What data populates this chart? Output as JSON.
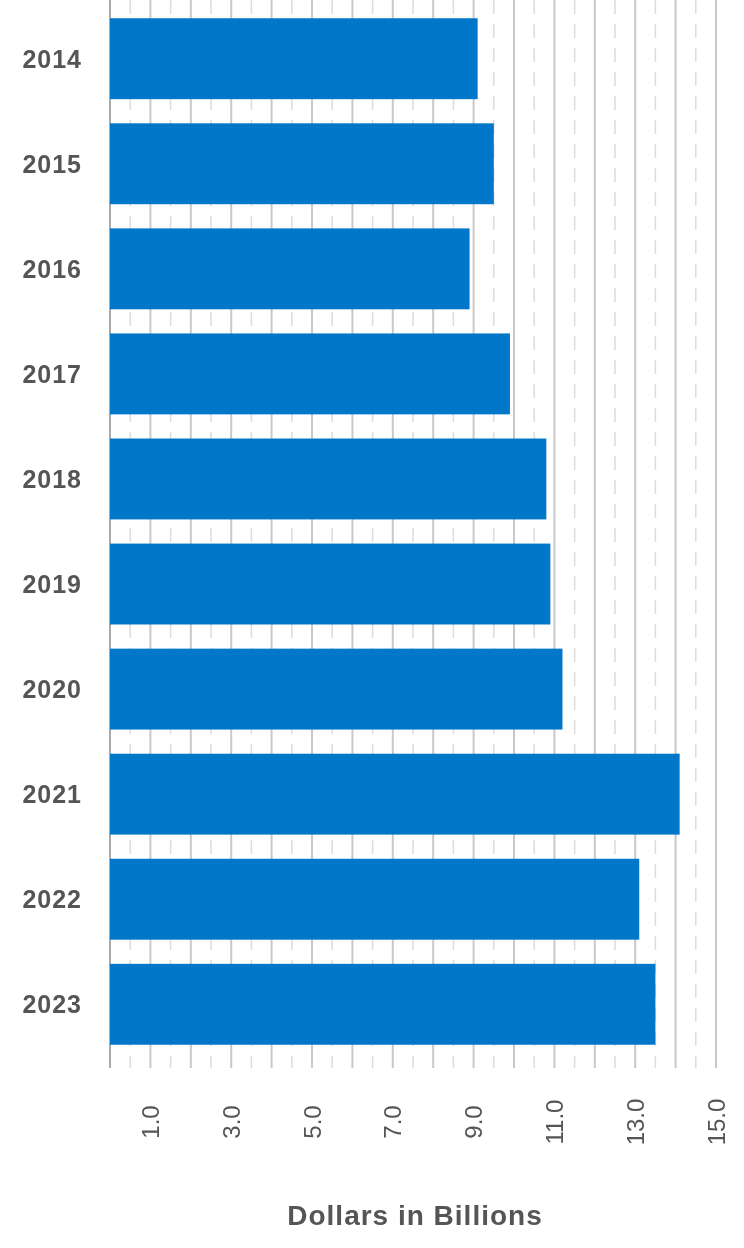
{
  "chart_data": {
    "type": "bar",
    "orientation": "horizontal",
    "xlabel": "Dollars in Billions",
    "categories": [
      "2014",
      "2015",
      "2016",
      "2017",
      "2018",
      "2019",
      "2020",
      "2021",
      "2022",
      "2023"
    ],
    "values": [
      9.1,
      9.5,
      8.9,
      9.9,
      10.8,
      10.9,
      11.2,
      14.1,
      13.1,
      13.5
    ],
    "color": "#0077c8",
    "xlim": [
      0,
      15
    ],
    "xticks": [
      {
        "value": 0.5,
        "label": null
      },
      {
        "value": 1,
        "label": "1.0"
      },
      {
        "value": 1.5,
        "label": null
      },
      {
        "value": 2,
        "label": null
      },
      {
        "value": 2.5,
        "label": null
      },
      {
        "value": 3,
        "label": "3.0"
      },
      {
        "value": 3.5,
        "label": null
      },
      {
        "value": 4,
        "label": null
      },
      {
        "value": 4.5,
        "label": null
      },
      {
        "value": 5,
        "label": "5.0"
      },
      {
        "value": 5.5,
        "label": null
      },
      {
        "value": 6,
        "label": null
      },
      {
        "value": 6.5,
        "label": null
      },
      {
        "value": 7,
        "label": "7.0"
      },
      {
        "value": 7.5,
        "label": null
      },
      {
        "value": 8,
        "label": null
      },
      {
        "value": 8.5,
        "label": null
      },
      {
        "value": 9,
        "label": "9.0"
      },
      {
        "value": 9.5,
        "label": null
      },
      {
        "value": 10,
        "label": null
      },
      {
        "value": 10.5,
        "label": null
      },
      {
        "value": 11,
        "label": "11.0"
      },
      {
        "value": 11.5,
        "label": null
      },
      {
        "value": 12,
        "label": null
      },
      {
        "value": 12.5,
        "label": null
      },
      {
        "value": 13,
        "label": "13.0"
      },
      {
        "value": 13.5,
        "label": null
      },
      {
        "value": 14,
        "label": null
      },
      {
        "value": 14.5,
        "label": null
      },
      {
        "value": 15,
        "label": "15.0"
      }
    ],
    "grid": "x"
  }
}
